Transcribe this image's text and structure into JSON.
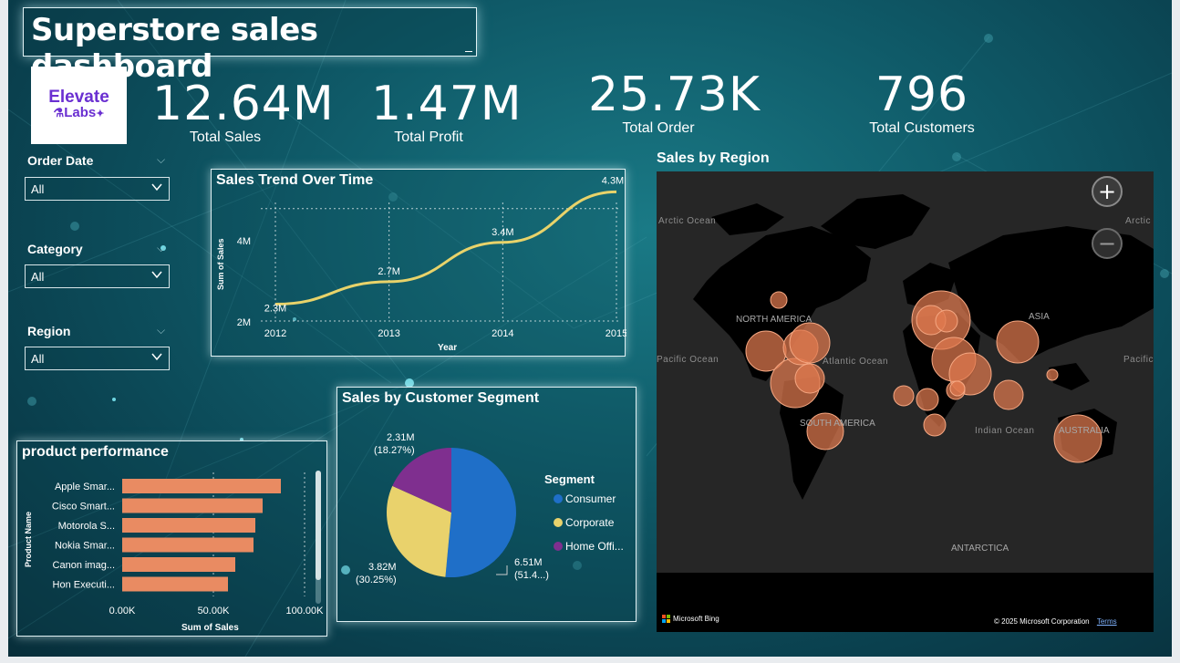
{
  "dashboard": {
    "title": "Superstore sales dashboard"
  },
  "logo": {
    "line1": "Elevate",
    "line2": "Labs"
  },
  "kpis": [
    {
      "value": "12.64M",
      "label": "Total Sales"
    },
    {
      "value": "1.47M",
      "label": "Total Profit"
    },
    {
      "value": "25.73K",
      "label": "Total Order"
    },
    {
      "value": "796",
      "label": "Total Customers"
    }
  ],
  "slicers": [
    {
      "label": "Order Date",
      "value": "All"
    },
    {
      "label": "Category",
      "value": "All"
    },
    {
      "label": "Region",
      "value": "All"
    }
  ],
  "trend": {
    "title": "Sales Trend Over Time",
    "xlabel": "Year",
    "ylabel": "Sum of Sales",
    "yticks": [
      "4M",
      "2M"
    ],
    "chart_data": {
      "type": "line",
      "x": [
        "2012",
        "2013",
        "2014",
        "2015"
      ],
      "values": [
        2.3,
        2.7,
        3.4,
        4.3
      ],
      "labels": [
        "2.3M",
        "2.7M",
        "3.4M",
        "4.3M"
      ],
      "ylim": [
        2,
        4.5
      ],
      "grid": true,
      "color": "#e8d36a"
    }
  },
  "products": {
    "title": "product performance",
    "xlabel": "Sum of Sales",
    "ylabel": "Product Name",
    "xticks": [
      "0.00K",
      "50.00K",
      "100.00K"
    ],
    "chart_data": {
      "type": "bar",
      "orientation": "horizontal",
      "categories": [
        "Apple Smar...",
        "Cisco Smart...",
        "Motorola S...",
        "Nokia Smar...",
        "Canon imag...",
        "Hon Executi..."
      ],
      "values": [
        87,
        77,
        73,
        72,
        62,
        58
      ],
      "xlim": [
        0,
        110
      ],
      "color": "#e98b62"
    }
  },
  "segment": {
    "title": "Sales by Customer Segment",
    "legend_title": "Segment",
    "chart_data": {
      "type": "pie",
      "slices": [
        {
          "name": "Consumer",
          "legend": "Consumer",
          "value": 51.48,
          "label1": "6.51M",
          "label2": "(51.4...)",
          "color": "#1f6fc8"
        },
        {
          "name": "Corporate",
          "legend": "Corporate",
          "value": 30.25,
          "label1": "3.82M",
          "label2": "(30.25%)",
          "color": "#e9d26c"
        },
        {
          "name": "Home Office",
          "legend": "Home Offi...",
          "value": 18.27,
          "label1": "2.31M",
          "label2": "(18.27%)",
          "color": "#7f2f8f"
        }
      ]
    }
  },
  "map": {
    "title": "Sales by Region",
    "zoom_in": "+",
    "zoom_out": "−",
    "labels": {
      "arctic": "Arctic Ocean",
      "arctic_right": "Arctic",
      "north_america": "NORTH AMERICA",
      "asia": "ASIA",
      "pacific": "Pacific Ocean",
      "pacific_right": "Pacific",
      "atlantic": "Atlantic Ocean",
      "south_america": "SOUTH AMERICA",
      "indian": "Indian Ocean",
      "australia": "AUSTRALIA",
      "antarctica": "ANTARCTICA"
    },
    "attribution": "Microsoft Bing",
    "copyright": "© 2025 Microsoft Corporation",
    "terms": "Terms"
  },
  "colors": {
    "accent_line": "#e8d36a",
    "bar": "#e98b62",
    "bubble": "#e07a4f",
    "background": "#0f5a68"
  }
}
